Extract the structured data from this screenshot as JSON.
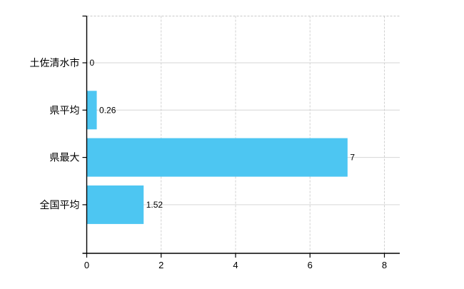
{
  "chart": {
    "background_color": "#ffffff",
    "bar_color": "#4dc6f2",
    "axis_color": "#000000",
    "grid_color_horizontal": "#d6d6d6",
    "grid_color_vertical": "#d0d0d0",
    "top_border_color": "#c9c9c9",
    "text_color": "#000000"
  },
  "chart_data": {
    "type": "bar",
    "orientation": "horizontal",
    "title": "",
    "xlabel": "",
    "ylabel": "",
    "categories": [
      "土佐清水市",
      "県平均",
      "県最大",
      "全国平均"
    ],
    "values": [
      0,
      0.26,
      7,
      1.52
    ],
    "value_labels": [
      "0",
      "0.26",
      "7",
      "1.52"
    ],
    "xlim": [
      0,
      8
    ],
    "xticks": [
      0,
      2,
      4,
      6,
      8
    ],
    "xtick_labels": [
      "0",
      "2",
      "4",
      "6",
      "8"
    ],
    "grid": true,
    "legend": false
  }
}
